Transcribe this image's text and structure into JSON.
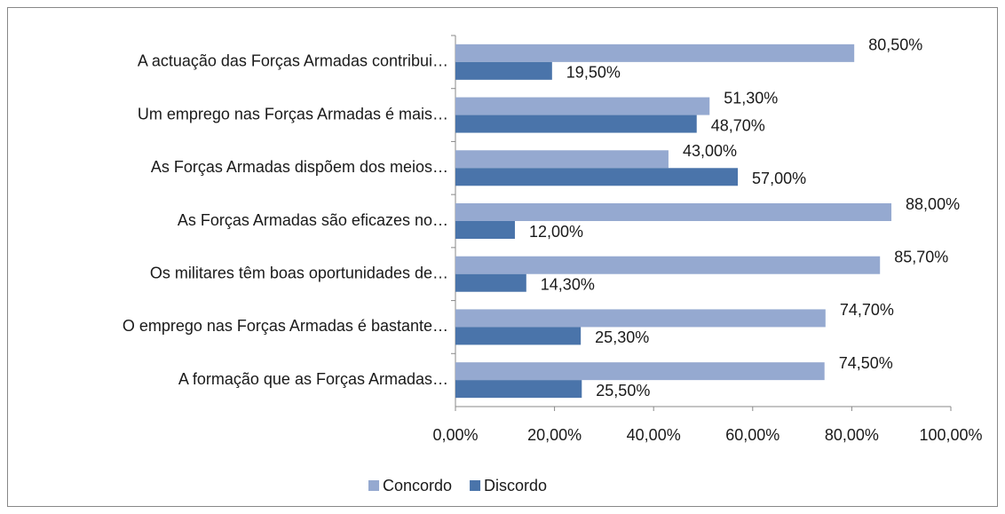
{
  "chart_data": {
    "type": "bar",
    "orientation": "horizontal",
    "categories": [
      "A actuação das Forças Armadas contribui…",
      "Um emprego nas Forças Armadas é mais…",
      "As Forças Armadas dispõem dos meios…",
      "As Forças Armadas são eficazes no…",
      "Os militares têm boas oportunidades de…",
      "O emprego nas Forças Armadas é bastante…",
      "A formação que as Forças Armadas…"
    ],
    "series": [
      {
        "name": "Concordo",
        "color": "#95a9d0",
        "values": [
          80.5,
          51.3,
          43,
          88,
          85.7,
          74.7,
          74.5
        ],
        "value_labels": [
          "80,50%",
          "51,30%",
          "43,00%",
          "88,00%",
          "85,70%",
          "74,70%",
          "74,50%"
        ]
      },
      {
        "name": "Discordo",
        "color": "#4a74aa",
        "values": [
          19.5,
          48.7,
          57,
          12,
          14.3,
          25.3,
          25.5
        ],
        "value_labels": [
          "19,50%",
          "48,70%",
          "57,00%",
          "12,00%",
          "14,30%",
          "25,30%",
          "25,50%"
        ]
      }
    ],
    "xlim": [
      0,
      100
    ],
    "xticks": [
      {
        "value": 0,
        "label": "0,00%"
      },
      {
        "value": 20,
        "label": "20,00%"
      },
      {
        "value": 40,
        "label": "40,00%"
      },
      {
        "value": 60,
        "label": "60,00%"
      },
      {
        "value": 80,
        "label": "80,00%"
      },
      {
        "value": 100,
        "label": "100,00%"
      }
    ],
    "legend": "bottom"
  }
}
